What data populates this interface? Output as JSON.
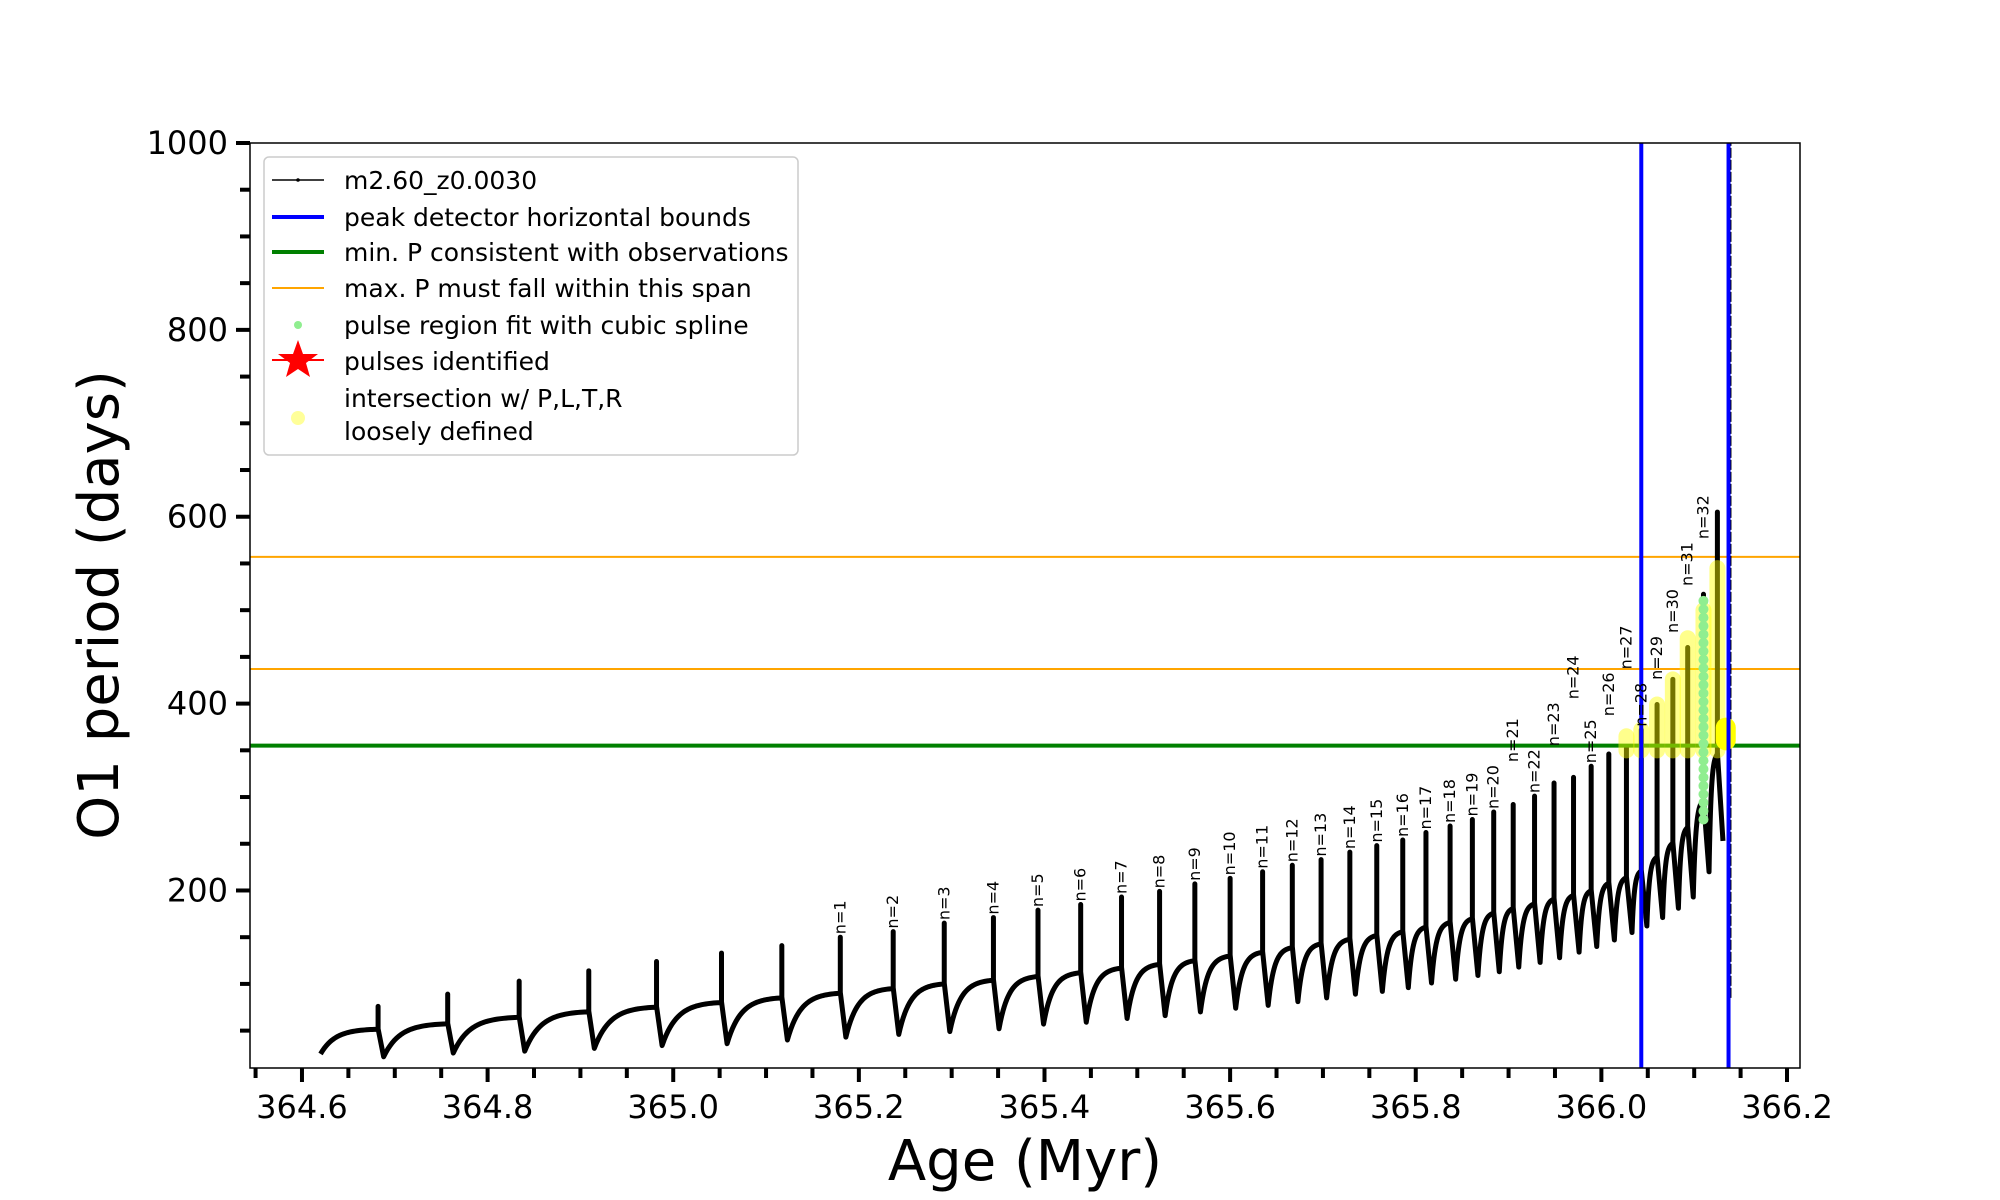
{
  "chart_data": {
    "type": "line",
    "title": "",
    "xlabel": "Age (Myr)",
    "ylabel": "O1 period (days)",
    "xlim": [
      364.544,
      366.214
    ],
    "ylim": [
      10,
      1000
    ],
    "x_ticks": [
      364.6,
      364.8,
      365.0,
      365.2,
      365.4,
      365.6,
      365.8,
      366.0,
      366.2
    ],
    "x_tick_labels": [
      "364.6",
      "364.8",
      "365.0",
      "365.2",
      "365.4",
      "365.6",
      "365.8",
      "366.0",
      "366.2"
    ],
    "x_minor_step": 0.05,
    "y_ticks": [
      200,
      400,
      600,
      800,
      1000
    ],
    "y_tick_labels": [
      "200",
      "400",
      "600",
      "800",
      "1000"
    ],
    "y_minor_step": 50,
    "grid": false,
    "legend_placement": "upper-left",
    "series": {
      "name": "m2.60_z0.0030",
      "color": "#000000",
      "start": {
        "age": 364.62,
        "period": 25
      },
      "pulses": [
        {
          "age": 364.682,
          "base": 52,
          "peak": 76,
          "dip": 22,
          "label": ""
        },
        {
          "age": 364.757,
          "base": 58,
          "peak": 89,
          "dip": 26,
          "label": ""
        },
        {
          "age": 364.834,
          "base": 65,
          "peak": 103,
          "dip": 28,
          "label": ""
        },
        {
          "age": 364.909,
          "base": 71,
          "peak": 114,
          "dip": 31,
          "label": ""
        },
        {
          "age": 364.982,
          "base": 76,
          "peak": 124,
          "dip": 34,
          "label": ""
        },
        {
          "age": 365.052,
          "base": 81,
          "peak": 133,
          "dip": 36,
          "label": ""
        },
        {
          "age": 365.117,
          "base": 86,
          "peak": 141,
          "dip": 40,
          "label": ""
        },
        {
          "age": 365.18,
          "base": 91,
          "peak": 150,
          "dip": 43,
          "label": "n=1"
        },
        {
          "age": 365.237,
          "base": 96,
          "peak": 156,
          "dip": 46,
          "label": "n=2"
        },
        {
          "age": 365.292,
          "base": 101,
          "peak": 165,
          "dip": 49,
          "label": "n=3"
        },
        {
          "age": 365.345,
          "base": 105,
          "peak": 171,
          "dip": 52,
          "label": "n=4"
        },
        {
          "age": 365.393,
          "base": 109,
          "peak": 179,
          "dip": 57,
          "label": "n=5"
        },
        {
          "age": 365.439,
          "base": 113,
          "peak": 185,
          "dip": 59,
          "label": "n=6"
        },
        {
          "age": 365.483,
          "base": 118,
          "peak": 193,
          "dip": 63,
          "label": "n=7"
        },
        {
          "age": 365.524,
          "base": 122,
          "peak": 199,
          "dip": 66,
          "label": "n=8"
        },
        {
          "age": 365.562,
          "base": 126,
          "peak": 207,
          "dip": 70,
          "label": "n=9"
        },
        {
          "age": 365.6,
          "base": 131,
          "peak": 213,
          "dip": 74,
          "label": "n=10"
        },
        {
          "age": 365.635,
          "base": 135,
          "peak": 220,
          "dip": 77,
          "label": "n=11"
        },
        {
          "age": 365.667,
          "base": 140,
          "peak": 227,
          "dip": 81,
          "label": "n=12"
        },
        {
          "age": 365.698,
          "base": 144,
          "peak": 233,
          "dip": 85,
          "label": "n=13"
        },
        {
          "age": 365.729,
          "base": 149,
          "peak": 241,
          "dip": 89,
          "label": "n=14"
        },
        {
          "age": 365.758,
          "base": 153,
          "peak": 248,
          "dip": 92,
          "label": "n=15"
        },
        {
          "age": 365.786,
          "base": 157,
          "peak": 254,
          "dip": 96,
          "label": "n=16"
        },
        {
          "age": 365.811,
          "base": 162,
          "peak": 262,
          "dip": 101,
          "label": "n=17"
        },
        {
          "age": 365.837,
          "base": 167,
          "peak": 269,
          "dip": 105,
          "label": "n=18"
        },
        {
          "age": 365.861,
          "base": 171,
          "peak": 276,
          "dip": 109,
          "label": "n=19"
        },
        {
          "age": 365.884,
          "base": 177,
          "peak": 284,
          "dip": 113,
          "label": "n=20"
        },
        {
          "age": 365.905,
          "base": 182,
          "peak": 292,
          "dip": 118,
          "label": "n=21"
        },
        {
          "age": 365.928,
          "base": 187,
          "peak": 301,
          "dip": 123,
          "label": "n=22"
        },
        {
          "age": 365.949,
          "base": 192,
          "peak": 315,
          "dip": 128,
          "label": "n=23"
        },
        {
          "age": 365.97,
          "base": 196,
          "peak": 321,
          "dip": 134,
          "label": "n=24"
        },
        {
          "age": 365.989,
          "base": 201,
          "peak": 333,
          "dip": 140,
          "label": "n=25"
        },
        {
          "age": 366.008,
          "base": 209,
          "peak": 346,
          "dip": 147,
          "label": "n=26"
        },
        {
          "age": 366.027,
          "base": 215,
          "peak": 354,
          "dip": 155,
          "label": "n=27"
        },
        {
          "age": 366.043,
          "base": 222,
          "peak": 372,
          "dip": 162,
          "label": "n=28"
        },
        {
          "age": 366.06,
          "base": 237,
          "peak": 399,
          "dip": 171,
          "label": "n=29"
        },
        {
          "age": 366.077,
          "base": 252,
          "peak": 426,
          "dip": 181,
          "label": "n=30"
        },
        {
          "age": 366.093,
          "base": 269,
          "peak": 460,
          "dip": 193,
          "label": "n=31"
        },
        {
          "age": 366.11,
          "base": 298,
          "peak": 517,
          "dip": 220,
          "label": "n=32"
        },
        {
          "age": 366.125,
          "base": 348,
          "peak": 605,
          "dip": 253,
          "label": ""
        }
      ],
      "final_trace": {
        "age": 366.138,
        "min": 85,
        "max": 1000
      }
    },
    "vlines": {
      "name": "peak detector horizontal bounds",
      "color": "#0000ff",
      "x": [
        366.043,
        366.137
      ]
    },
    "hline_min": {
      "name": "min. P consistent with observations",
      "color": "#008000",
      "y": 355
    },
    "hlines_max": {
      "name": "max. P must fall within this span",
      "color": "#ffa500",
      "y": [
        437,
        557
      ]
    },
    "spline": {
      "name": "pulse region fit with cubic spline",
      "color": "#90ee90",
      "age": 366.11,
      "range": [
        276,
        517
      ]
    },
    "pulses_identified": {
      "name": "pulses identified",
      "color": "#ff0000"
    },
    "intersection": {
      "name": "intersection w/ P,L,T,R\nloosely defined",
      "name_lines": [
        "intersection w/ P,L,T,R",
        "loosely defined"
      ],
      "color": "#ffff00",
      "regions": [
        {
          "age": 366.027,
          "range": [
            350,
            365
          ]
        },
        {
          "age": 366.043,
          "range": [
            350,
            372
          ]
        },
        {
          "age": 366.06,
          "range": [
            350,
            399
          ]
        },
        {
          "age": 366.077,
          "range": [
            350,
            426
          ]
        },
        {
          "age": 366.093,
          "range": [
            350,
            470
          ]
        },
        {
          "age": 366.11,
          "range": [
            350,
            500
          ]
        },
        {
          "age": 366.125,
          "range": [
            350,
            545
          ]
        }
      ],
      "main_blob": {
        "age": 366.134,
        "range": [
          350,
          385
        ]
      }
    }
  }
}
